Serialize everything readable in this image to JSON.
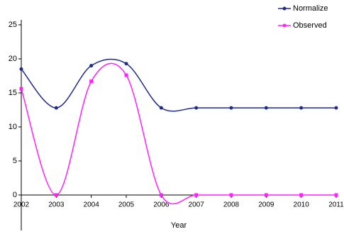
{
  "chart_data": {
    "type": "line",
    "x_label": "Year",
    "categories": [
      "2002",
      "2003",
      "2004",
      "2005",
      "2006",
      "2007",
      "2008",
      "2009",
      "2010",
      "2011"
    ],
    "series": [
      {
        "name": "Normalize",
        "color": "#1f2a8c",
        "values": [
          18.5,
          12.8,
          19,
          19.3,
          12.8,
          12.8,
          12.8,
          12.8,
          12.8,
          12.8
        ]
      },
      {
        "name": "Observed",
        "color": "#ff22ff",
        "values": [
          15.6,
          0,
          16.7,
          17.6,
          0,
          0,
          0,
          0,
          0,
          0
        ]
      }
    ],
    "ylim": [
      0,
      25
    ],
    "yticks": [
      0,
      5,
      10,
      15,
      20,
      25
    ],
    "smooth": true
  }
}
